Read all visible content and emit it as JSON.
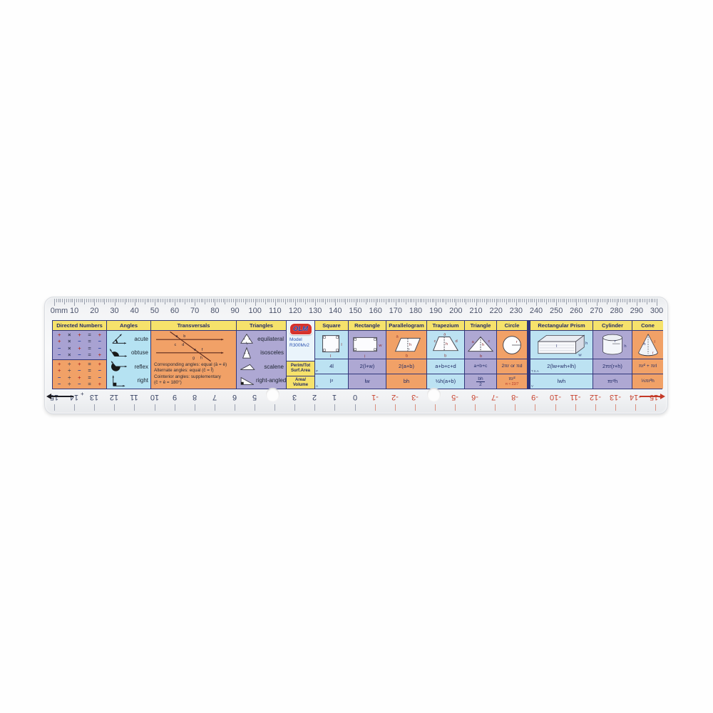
{
  "palette": {
    "header_yellow": "#f6e26b",
    "navy_border": "#30367b",
    "purple": "#aea8d3",
    "orange": "#f1a167",
    "blue": "#bce2f2",
    "brand_red": "#d6322c",
    "brand_blue": "#1b3fa8",
    "negative_red": "#c8432f",
    "positive_navy": "#3a4565"
  },
  "top_scale": {
    "labels": [
      "0mm",
      "10",
      "20",
      "30",
      "40",
      "50",
      "60",
      "70",
      "80",
      "90",
      "100",
      "110",
      "120",
      "130",
      "140",
      "150",
      "160",
      "170",
      "180",
      "190",
      "200",
      "210",
      "220",
      "230",
      "240",
      "250",
      "260",
      "270",
      "280",
      "290",
      "300"
    ]
  },
  "bottom_scale": {
    "values": [
      15,
      14,
      13,
      12,
      11,
      10,
      9,
      8,
      7,
      6,
      5,
      4,
      3,
      2,
      1,
      0,
      -1,
      -2,
      -3,
      -4,
      -5,
      -6,
      -7,
      -8,
      -9,
      -10,
      -11,
      -12,
      -13,
      -14,
      -15
    ],
    "plus_label": "+"
  },
  "brand": {
    "logo_text": "OLM",
    "model_label": "Model",
    "model_number": "R300Mv2"
  },
  "formula_rows": {
    "perimeter_label_1": "Perim/Tot",
    "perimeter_label_2": "Surf.Area",
    "area_label_1": "Area/",
    "area_label_2": "Volume",
    "marker_p": "P",
    "marker_a": "A",
    "marker_tsa": "T.S.A",
    "marker_v": "V"
  },
  "sections": {
    "directed_numbers": {
      "title": "Directed Numbers",
      "multiplication_rules": [
        "+ × + = +",
        "+ × − = −",
        "− × + = −",
        "− × − = +"
      ],
      "division_rules": [
        "+ ÷ + = +",
        "+ ÷ − = −",
        "− ÷ + = −",
        "− ÷ − = +"
      ]
    },
    "angles": {
      "title": "Angles",
      "items": [
        {
          "icon": "acute-angle-icon",
          "label": "acute"
        },
        {
          "icon": "obtuse-angle-icon",
          "label": "obtuse"
        },
        {
          "icon": "reflex-angle-icon",
          "label": "reflex"
        },
        {
          "icon": "right-angle-icon",
          "label": "right"
        }
      ]
    },
    "transversals": {
      "title": "Transversals",
      "diagram_letters": {
        "top": [
          "a",
          "b",
          "c",
          "d"
        ],
        "bottom": [
          "e",
          "f",
          "g",
          "h"
        ]
      },
      "rules": [
        "Corresponding angles: equal (â = ê)",
        "Alternate angles: equal (ĉ = f̂)",
        "Cointerior angles: supplementary",
        "(ĉ + ê = 180°)"
      ]
    },
    "triangles": {
      "title": "Triangles",
      "items": [
        {
          "icon": "equilateral-triangle-icon",
          "label": "equilateral"
        },
        {
          "icon": "isosceles-triangle-icon",
          "label": "isosceles"
        },
        {
          "icon": "scalene-triangle-icon",
          "label": "scalene"
        },
        {
          "icon": "right-angled-triangle-icon",
          "label": "right-angled"
        }
      ]
    }
  },
  "shapes_2d": [
    {
      "name": "Square",
      "bg": "blue",
      "icon": "square-icon",
      "labels": [
        "l",
        "l"
      ],
      "perimeter": "4l",
      "area": "l²"
    },
    {
      "name": "Rectangle",
      "bg": "purple",
      "icon": "rectangle-icon",
      "labels": [
        "w",
        "l"
      ],
      "perimeter": "2(l+w)",
      "area": "lw"
    },
    {
      "name": "Parallelogram",
      "bg": "orange",
      "icon": "parallelogram-icon",
      "labels": [
        "a",
        "h",
        "b"
      ],
      "perimeter": "2(a+b)",
      "area": "bh"
    },
    {
      "name": "Trapezium",
      "bg": "blue",
      "icon": "trapezium-icon",
      "labels": [
        "a",
        "c",
        "d",
        "h",
        "b"
      ],
      "perimeter": "a+b+c+d",
      "area": "½h(a+b)"
    },
    {
      "name": "Triangle",
      "bg": "purple",
      "icon": "triangle-icon",
      "labels": [
        "a",
        "c",
        "h",
        "b"
      ],
      "perimeter": "a+b+c",
      "area": "bh/2"
    },
    {
      "name": "Circle",
      "bg": "orange",
      "icon": "circle-icon",
      "labels": [
        "r"
      ],
      "perimeter": "2πr or πd",
      "area": "πr²",
      "area_note": "π ≈ 22/7"
    }
  ],
  "shapes_3d": [
    {
      "name": "Rectangular Prism",
      "bg": "blue",
      "icon": "rectangular-prism-icon",
      "labels": [
        "l",
        "h",
        "w"
      ],
      "surface_area": "2(lw+wh+lh)",
      "volume": "lwh"
    },
    {
      "name": "Cylinder",
      "bg": "purple",
      "icon": "cylinder-icon",
      "labels": [
        "r",
        "h"
      ],
      "surface_area": "2πr(r+h)",
      "volume": "πr²h"
    },
    {
      "name": "Cone",
      "bg": "orange",
      "icon": "cone-icon",
      "labels": [
        "h",
        "l",
        "r"
      ],
      "surface_area": "πr² + πrl",
      "volume": "⅓πr²h"
    }
  ]
}
